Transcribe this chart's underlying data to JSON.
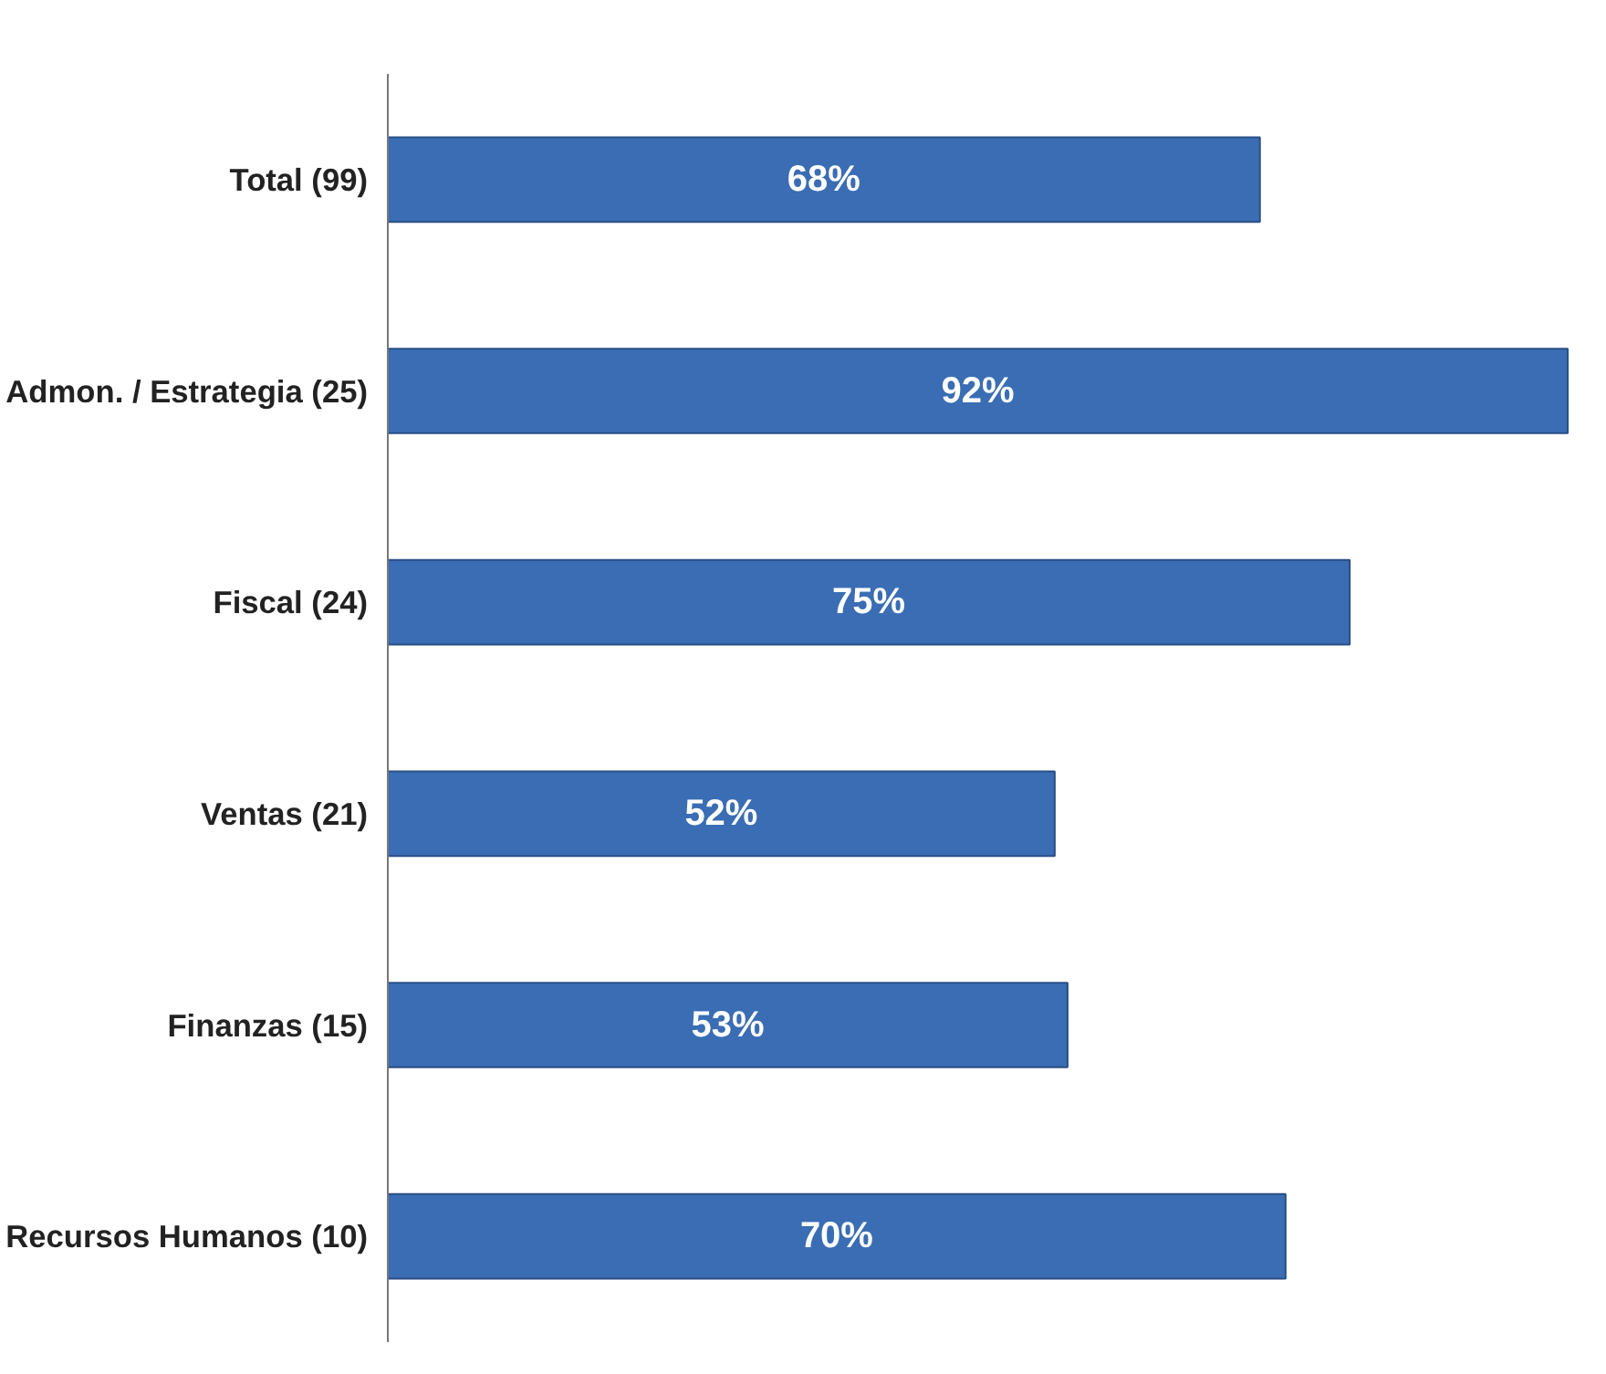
{
  "chart_data": {
    "type": "bar",
    "orientation": "horizontal",
    "categories": [
      "Total (99)",
      "Admon. / Estrategia (25)",
      "Fiscal (24)",
      "Ventas (21)",
      "Finanzas (15)",
      "Recursos Humanos (10)"
    ],
    "values": [
      68,
      92,
      75,
      52,
      53,
      70
    ],
    "value_labels": [
      "68%",
      "92%",
      "75%",
      "52%",
      "53%",
      "70%"
    ],
    "color": "#3a6db3",
    "grid": false
  }
}
